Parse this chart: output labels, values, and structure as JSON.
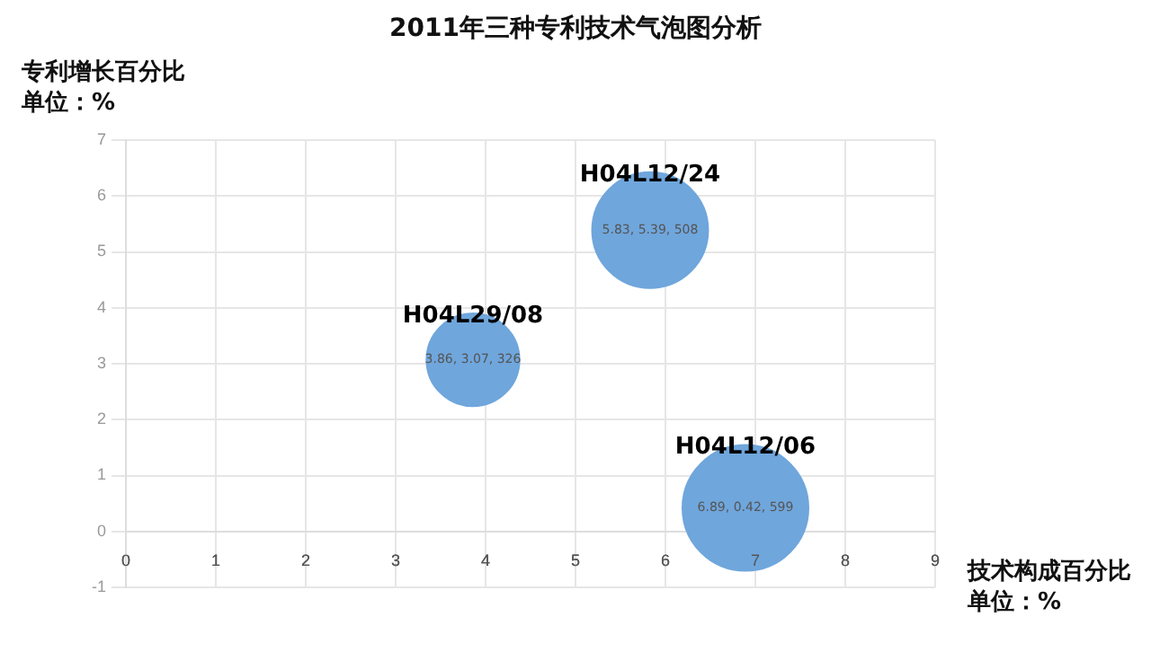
{
  "chart_data": {
    "type": "bubble",
    "title": "2011年三种专利技术气泡图分析",
    "xlabel": "技术构成百分比",
    "ylabel": "专利增长百分比",
    "annotations": [
      "单位：%",
      "单位：%"
    ],
    "series": [
      {
        "name": "H04L29/08",
        "color": "#6fa6dc",
        "x": [
          3.86
        ],
        "values": [
          3.07
        ],
        "sizes": [
          0.544
        ],
        "value_labels": [
          "3.86, 3.07, 326"
        ]
      },
      {
        "name": "H04L12/24",
        "color": "#6fa6dc",
        "x": [
          5.83
        ],
        "values": [
          5.39
        ],
        "sizes": [
          0.848
        ],
        "value_labels": [
          "5.83, 5.39, 508"
        ]
      },
      {
        "name": "H04L12/06",
        "color": "#6fa6dc",
        "x": [
          6.89
        ],
        "values": [
          0.42
        ],
        "sizes": [
          1
        ],
        "value_labels": [
          "6.89, 0.42, 599"
        ]
      }
    ],
    "xlim": [
      0,
      9
    ],
    "xticks": [
      0,
      1,
      2,
      3,
      4,
      5,
      6,
      7,
      8,
      9
    ],
    "ylim": [
      -1,
      7
    ],
    "yticks": [
      -1,
      0,
      1,
      2,
      3,
      4,
      5,
      6,
      7
    ],
    "grid": true,
    "legend": false
  }
}
